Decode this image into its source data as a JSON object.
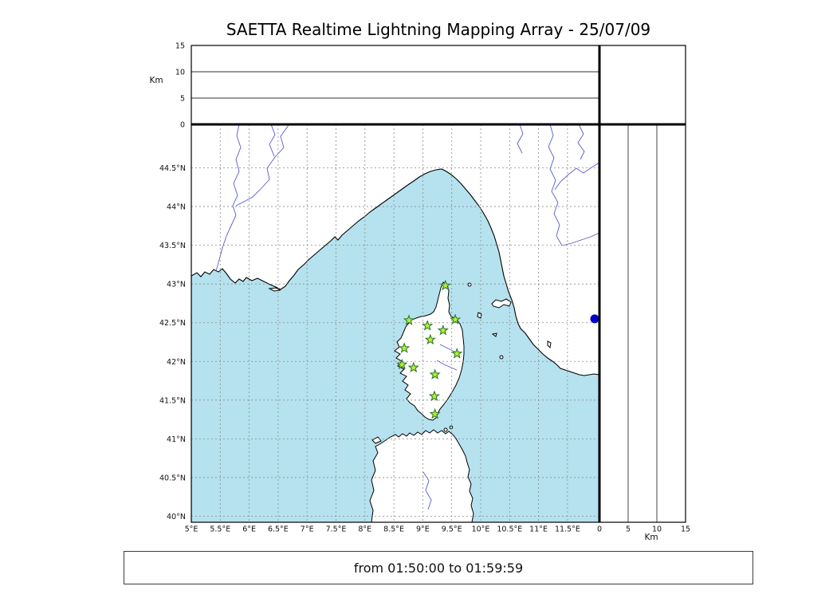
{
  "title": "SAETTA Realtime Lightning Mapping Array - 25/07/09",
  "status_bar": {
    "text": "from 01:50:00 to 01:59:59"
  },
  "colors": {
    "sea": "#b5e2ee",
    "land": "#ffffff",
    "coast": "#000000",
    "grid": "#8a8a8a",
    "river": "#5a5ace",
    "station_fill": "#b8ee33",
    "station_stroke": "#267326",
    "event_dot": "#0000cd"
  },
  "map": {
    "lat_ticks": [
      {
        "label": "44.5°N",
        "value": 44.5
      },
      {
        "label": "44°N",
        "value": 44
      },
      {
        "label": "43.5°N",
        "value": 43.5
      },
      {
        "label": "43°N",
        "value": 43
      },
      {
        "label": "42.5°N",
        "value": 42.5
      },
      {
        "label": "42°N",
        "value": 42
      },
      {
        "label": "41.5°N",
        "value": 41.5
      },
      {
        "label": "41°N",
        "value": 41
      },
      {
        "label": "40.5°N",
        "value": 40.5
      },
      {
        "label": "40°N",
        "value": 40
      }
    ],
    "lon_ticks": [
      {
        "label": "5°E",
        "value": 5
      },
      {
        "label": "5.5°E",
        "value": 5.5
      },
      {
        "label": "6°E",
        "value": 6
      },
      {
        "label": "6.5°E",
        "value": 6.5
      },
      {
        "label": "7°E",
        "value": 7
      },
      {
        "label": "7.5°E",
        "value": 7.5
      },
      {
        "label": "8°E",
        "value": 8
      },
      {
        "label": "8.5°E",
        "value": 8.5
      },
      {
        "label": "9°E",
        "value": 9
      },
      {
        "label": "9.5°E",
        "value": 9.5
      },
      {
        "label": "10°E",
        "value": 10
      },
      {
        "label": "10.5°E",
        "value": 10.5
      },
      {
        "label": "11°E",
        "value": 11
      },
      {
        "label": "11.5°E",
        "value": 11.5
      }
    ]
  },
  "altitude_axis": {
    "label": "Km",
    "right_label": "Km",
    "range_km": [
      0,
      15
    ],
    "top_ticks": [
      {
        "label": "15",
        "value": 15
      },
      {
        "label": "10",
        "value": 10
      },
      {
        "label": "5",
        "value": 5
      },
      {
        "label": "0",
        "value": 0
      }
    ],
    "right_ticks": [
      {
        "label": "0",
        "value": 0
      },
      {
        "label": "5",
        "value": 5
      },
      {
        "label": "10",
        "value": 10
      },
      {
        "label": "15",
        "value": 15
      }
    ]
  },
  "stations": [
    {
      "lat": 42.98,
      "lon": 9.39
    },
    {
      "lat": 42.53,
      "lon": 8.76
    },
    {
      "lat": 42.46,
      "lon": 9.08
    },
    {
      "lat": 42.54,
      "lon": 9.56
    },
    {
      "lat": 42.4,
      "lon": 9.35
    },
    {
      "lat": 42.28,
      "lon": 9.13
    },
    {
      "lat": 42.17,
      "lon": 8.68
    },
    {
      "lat": 42.1,
      "lon": 9.59
    },
    {
      "lat": 41.96,
      "lon": 8.64
    },
    {
      "lat": 41.92,
      "lon": 8.84
    },
    {
      "lat": 41.83,
      "lon": 9.21
    },
    {
      "lat": 41.55,
      "lon": 9.2
    },
    {
      "lat": 41.32,
      "lon": 9.21
    }
  ],
  "event_point": {
    "lat": 42.55,
    "lon": 11.97
  }
}
